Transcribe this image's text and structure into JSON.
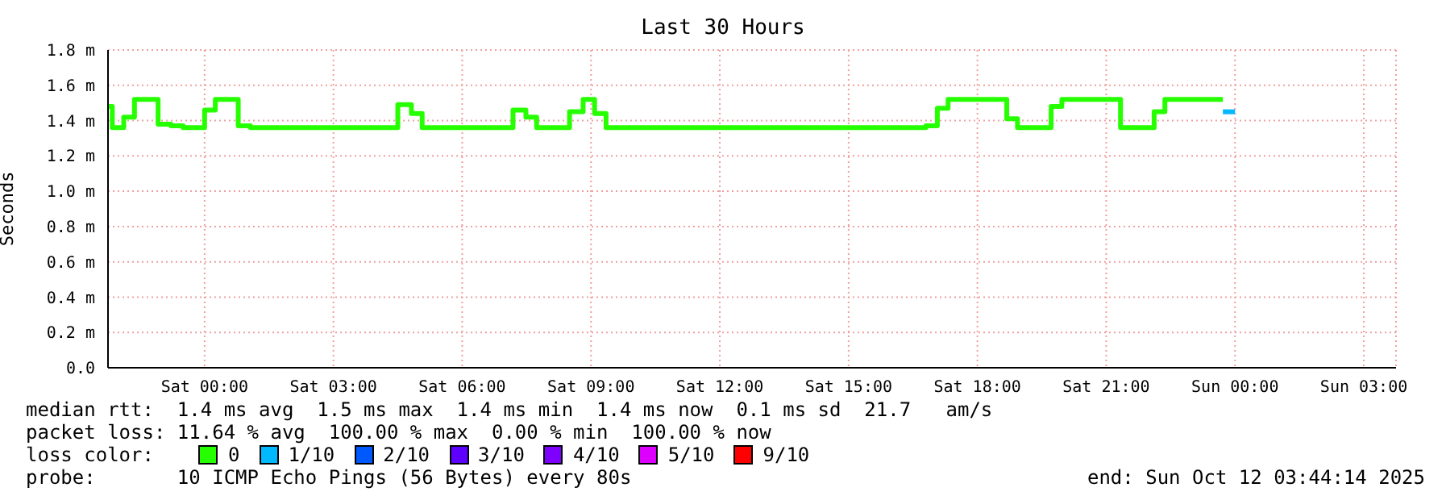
{
  "chart_data": {
    "type": "step",
    "title": "Last 30 Hours",
    "ylabel": "Seconds",
    "legend_title": "loss color:",
    "legend": "bottom",
    "grid": true,
    "marker": "none",
    "line_style": "solid",
    "xlim": [
      "2025-10-10T21:45",
      "2025-10-12T03:45"
    ],
    "xticks": [
      {
        "value": "2025-10-11T00:00",
        "label": "Sat 00:00"
      },
      {
        "value": "2025-10-11T03:00",
        "label": "Sat 03:00"
      },
      {
        "value": "2025-10-11T06:00",
        "label": "Sat 06:00"
      },
      {
        "value": "2025-10-11T09:00",
        "label": "Sat 09:00"
      },
      {
        "value": "2025-10-11T12:00",
        "label": "Sat 12:00"
      },
      {
        "value": "2025-10-11T15:00",
        "label": "Sat 15:00"
      },
      {
        "value": "2025-10-11T18:00",
        "label": "Sat 18:00"
      },
      {
        "value": "2025-10-11T21:00",
        "label": "Sat 21:00"
      },
      {
        "value": "2025-10-12T00:00",
        "label": "Sun 00:00"
      },
      {
        "value": "2025-10-12T03:00",
        "label": "Sun 03:00"
      }
    ],
    "ylim": [
      0,
      1.8
    ],
    "yticks": [
      {
        "value": 0,
        "label": "0.0"
      },
      {
        "value": 0.2,
        "label": "0.2 m"
      },
      {
        "value": 0.4,
        "label": "0.4 m"
      },
      {
        "value": 0.6,
        "label": "0.6 m"
      },
      {
        "value": 0.8,
        "label": "0.8 m"
      },
      {
        "value": 1.0,
        "label": "1.0 m"
      },
      {
        "value": 1.2,
        "label": "1.2 m"
      },
      {
        "value": 1.4,
        "label": "1.4 m"
      },
      {
        "value": 1.6,
        "label": "1.6 m"
      },
      {
        "value": 1.8,
        "label": "1.8 m"
      }
    ],
    "series": [
      {
        "name": "0",
        "color": "#26ff00",
        "x": [
          "2025-10-10T21:45",
          "2025-10-10T21:51",
          "2025-10-10T22:07",
          "2025-10-10T22:22",
          "2025-10-10T22:55",
          "2025-10-10T23:13",
          "2025-10-10T23:30",
          "2025-10-11T00:00",
          "2025-10-11T00:15",
          "2025-10-11T00:47",
          "2025-10-11T01:04",
          "2025-10-11T04:30",
          "2025-10-11T04:49",
          "2025-10-11T05:04",
          "2025-10-11T07:11",
          "2025-10-11T07:29",
          "2025-10-11T07:44",
          "2025-10-11T08:30",
          "2025-10-11T08:49",
          "2025-10-11T09:05",
          "2025-10-11T09:21",
          "2025-10-11T16:48",
          "2025-10-11T17:04",
          "2025-10-11T17:19",
          "2025-10-11T18:41",
          "2025-10-11T18:56",
          "2025-10-11T19:43",
          "2025-10-11T19:58",
          "2025-10-11T21:20",
          "2025-10-11T22:07",
          "2025-10-11T22:22",
          "2025-10-11T23:43"
        ],
        "values": [
          1.48,
          1.36,
          1.42,
          1.52,
          1.38,
          1.37,
          1.36,
          1.46,
          1.52,
          1.37,
          1.36,
          1.49,
          1.44,
          1.36,
          1.46,
          1.42,
          1.36,
          1.45,
          1.52,
          1.44,
          1.36,
          1.37,
          1.47,
          1.52,
          1.41,
          1.36,
          1.48,
          1.52,
          1.36,
          1.45,
          1.52,
          1.52
        ]
      },
      {
        "name": "1/10",
        "color": "#00b8ff",
        "x": [
          "2025-10-11T23:43",
          "2025-10-12T00:00"
        ],
        "values": [
          1.45,
          1.45
        ]
      },
      {
        "name": "2/10",
        "color": "#0059ff"
      },
      {
        "name": "3/10",
        "color": "#5e00ff"
      },
      {
        "name": "4/10",
        "color": "#7e00ff"
      },
      {
        "name": "5/10",
        "color": "#dd00ff"
      },
      {
        "name": "9/10",
        "color": "#ff0000"
      }
    ],
    "annotations": [
      "median rtt:  1.4 ms avg  1.5 ms max  1.4 ms min  1.4 ms now  0.1 ms sd  21.7   am/s",
      "packet loss: 11.64 % avg  100.00 % max  0.00 % min  100.00 % now",
      "probe:       10 ICMP Echo Pings (56 Bytes) every 80s",
      "end: Sun Oct 12 03:44:14 2025"
    ]
  }
}
